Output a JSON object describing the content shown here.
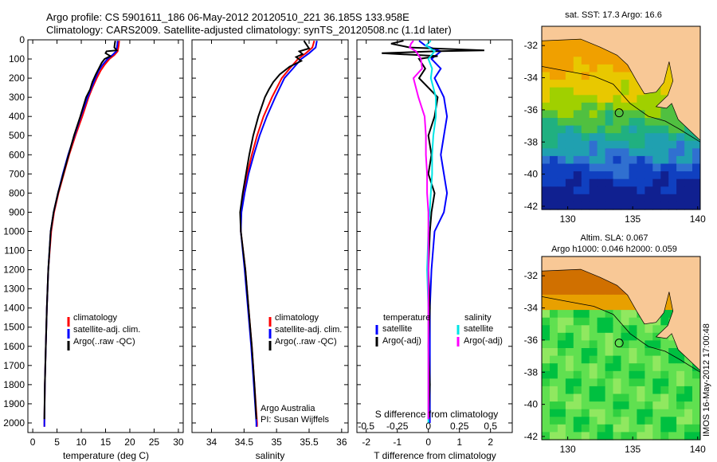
{
  "header": {
    "line1": "Argo profile: CS 5901611_186 06-May-2012 20120510_221 36.185S 133.958E",
    "line2": "Climatology: CARS2009. Satellite-adjusted climatology: synTS_20120508.nc (1.1d later)"
  },
  "map_top": {
    "title": "sat. SST: 17.3 Argo: 16.6",
    "x_ticks": [
      "130",
      "135",
      "140"
    ],
    "y_ticks": [
      "-32",
      "-34",
      "-36",
      "-38",
      "-40",
      "-42"
    ],
    "xlim": [
      128,
      140.2
    ],
    "ylim": [
      -42.2,
      -30.8
    ],
    "float_position": [
      133.958,
      -36.185
    ]
  },
  "map_bottom": {
    "title_line1": "Altim. SLA: 0.067",
    "title_line2": "Argo h1000: 0.046 h2000: 0.059",
    "x_ticks": [
      "130",
      "135",
      "140"
    ],
    "y_ticks": [
      "-32",
      "-34",
      "-36",
      "-38",
      "-40",
      "-42"
    ],
    "xlim": [
      128,
      140.2
    ],
    "ylim": [
      -42.2,
      -30.8
    ],
    "float_position": [
      133.958,
      -36.185
    ]
  },
  "side_stamp": "IMOS 16-May-2012 17:00:48",
  "credit": {
    "line1": "Argo Australia",
    "line2": "PI: Susan Wijffels"
  },
  "colors": {
    "climatology": "#ff0000",
    "satellite": "#0000ff",
    "argo": "#000000",
    "salinity_satellite": "#00e5e5",
    "salinity_argo": "#ff00ff",
    "land": "#f8c896"
  },
  "chart_data": [
    {
      "type": "line",
      "xlabel": "temperature (deg C)",
      "ylabel": "",
      "xlim": [
        -1,
        31
      ],
      "ylim": [
        2050,
        0
      ],
      "x_ticks": [
        "0",
        "5",
        "10",
        "15",
        "20",
        "25",
        "30"
      ],
      "y_ticks": [
        "0",
        "100",
        "200",
        "300",
        "400",
        "500",
        "600",
        "700",
        "800",
        "900",
        "1000",
        "1100",
        "1200",
        "1300",
        "1400",
        "1500",
        "1600",
        "1700",
        "1800",
        "1900",
        "2000"
      ],
      "legend": [
        "climatology",
        "satellite-adj. clim.",
        "Argo(..raw -QC)"
      ],
      "series": [
        {
          "name": "climatology",
          "color": "climatology",
          "depth": [
            5,
            30,
            60,
            80,
            100,
            130,
            160,
            200,
            250,
            300,
            400,
            500,
            600,
            700,
            800,
            900,
            1000,
            1200,
            1400,
            1600,
            1800,
            2000,
            2020
          ],
          "values": [
            17.8,
            17.7,
            17.5,
            16.8,
            15.8,
            14.8,
            14.0,
            13.2,
            12.3,
            11.5,
            10.2,
            8.8,
            7.5,
            6.4,
            5.3,
            4.4,
            3.8,
            3.2,
            2.9,
            2.7,
            2.5,
            2.4,
            2.4
          ]
        },
        {
          "name": "satellite-adj. clim.",
          "color": "satellite",
          "depth": [
            5,
            30,
            60,
            80,
            100,
            130,
            160,
            200,
            250,
            300,
            400,
            500,
            600,
            700,
            800,
            900,
            1000,
            1200,
            1400,
            1600,
            1800,
            2000,
            2020
          ],
          "values": [
            17.5,
            17.4,
            17.2,
            16.4,
            15.4,
            14.4,
            13.6,
            12.9,
            12.1,
            11.3,
            9.9,
            8.6,
            7.3,
            6.2,
            5.2,
            4.3,
            3.7,
            3.2,
            2.9,
            2.7,
            2.5,
            2.4,
            2.4
          ]
        },
        {
          "name": "Argo(..raw -QC)",
          "color": "argo",
          "depth": [
            5,
            20,
            40,
            55,
            60,
            70,
            85,
            100,
            120,
            150,
            180,
            220,
            260,
            300,
            400,
            500,
            600,
            700,
            800,
            900,
            1000,
            1200,
            1400,
            1600,
            1800,
            1980
          ],
          "values": [
            17.0,
            16.9,
            16.8,
            17.3,
            15.2,
            15.0,
            16.0,
            14.8,
            14.2,
            13.6,
            13.0,
            12.3,
            11.8,
            11.0,
            9.8,
            8.5,
            7.4,
            6.3,
            5.2,
            4.3,
            3.7,
            3.2,
            2.9,
            2.7,
            2.5,
            2.4
          ]
        }
      ]
    },
    {
      "type": "line",
      "xlabel": "salinity",
      "ylabel": "",
      "xlim": [
        33.7,
        36.1
      ],
      "ylim": [
        2050,
        0
      ],
      "x_ticks": [
        "34",
        "34.5",
        "35",
        "35.5",
        "36"
      ],
      "legend": [
        "climatology",
        "satellite-adj. clim.",
        "Argo(..raw -QC)"
      ],
      "series": [
        {
          "name": "climatology",
          "color": "climatology",
          "depth": [
            5,
            40,
            70,
            100,
            150,
            200,
            300,
            400,
            500,
            600,
            700,
            800,
            900,
            1000,
            1200,
            1400,
            1600,
            1800,
            2000,
            2020
          ],
          "values": [
            35.58,
            35.55,
            35.45,
            35.33,
            35.2,
            35.08,
            34.93,
            34.8,
            34.7,
            34.62,
            34.55,
            34.5,
            34.45,
            34.45,
            34.52,
            34.57,
            34.62,
            34.66,
            34.7,
            34.7
          ]
        },
        {
          "name": "satellite-adj. clim.",
          "color": "satellite",
          "depth": [
            5,
            40,
            70,
            100,
            150,
            200,
            300,
            400,
            500,
            600,
            700,
            800,
            900,
            1000,
            1200,
            1400,
            1600,
            1800,
            2000,
            2020
          ],
          "values": [
            35.62,
            35.6,
            35.5,
            35.38,
            35.25,
            35.12,
            34.98,
            34.85,
            34.74,
            34.65,
            34.57,
            34.51,
            34.46,
            34.45,
            34.51,
            34.56,
            34.61,
            34.65,
            34.69,
            34.69
          ]
        },
        {
          "name": "Argo(..raw -QC)",
          "color": "argo",
          "depth": [
            5,
            20,
            45,
            60,
            75,
            90,
            110,
            140,
            180,
            220,
            260,
            300,
            400,
            500,
            600,
            700,
            800,
            900,
            1000,
            1200,
            1400,
            1600,
            1800,
            1980
          ],
          "values": [
            35.42,
            35.45,
            35.5,
            35.35,
            35.4,
            35.3,
            35.38,
            35.2,
            35.05,
            34.95,
            34.88,
            34.82,
            34.72,
            34.64,
            34.58,
            34.53,
            34.48,
            34.44,
            34.45,
            34.52,
            34.57,
            34.62,
            34.66,
            34.69
          ]
        }
      ]
    },
    {
      "type": "line",
      "xlabel": "T difference from climatology",
      "xlabel2": "S difference from climatology",
      "xlim": [
        -2.3,
        2.7
      ],
      "ylim": [
        2050,
        0
      ],
      "x_ticks": [
        "-2",
        "-1",
        "0",
        "1",
        "2"
      ],
      "x2_ticks": [
        "-0.5",
        "-0.25",
        "0",
        "0.25",
        "0.5"
      ],
      "legend_headers": [
        "temperature",
        "salinity"
      ],
      "legend": [
        "satellite",
        "Argo(-adj)",
        "satellite",
        "Argo(-adj)"
      ],
      "series": [
        {
          "name": "satellite",
          "group": "temperature",
          "color": "satellite",
          "depth": [
            5,
            30,
            60,
            100,
            150,
            200,
            300,
            400,
            500,
            600,
            700,
            800,
            900,
            1000,
            1200,
            1400,
            1600,
            1800,
            2000
          ],
          "values": [
            -0.3,
            -0.1,
            0.4,
            0.1,
            0.4,
            0.2,
            0.5,
            0.6,
            0.5,
            0.4,
            0.5,
            0.6,
            0.5,
            0.2,
            0.1,
            0.05,
            0.05,
            0.05,
            0.05
          ]
        },
        {
          "name": "Argo(-adj)",
          "group": "temperature",
          "color": "argo",
          "depth": [
            5,
            20,
            40,
            55,
            60,
            70,
            85,
            100,
            150,
            200,
            300,
            400,
            500,
            600,
            700,
            800,
            900,
            1000,
            1200,
            1400,
            1600,
            1800,
            1980
          ],
          "values": [
            -0.8,
            -1.2,
            -0.6,
            1.8,
            0.2,
            -1.5,
            0.3,
            -0.3,
            -0.1,
            -0.3,
            0.3,
            0.2,
            0.0,
            0.1,
            0.0,
            0.2,
            0.1,
            0.05,
            0.0,
            0.05,
            0.0,
            0.05,
            0.0
          ]
        },
        {
          "name": "satellite",
          "group": "salinity",
          "color": "salinity_satellite",
          "depth": [
            5,
            30,
            60,
            100,
            150,
            200,
            300,
            400,
            500,
            600,
            700,
            800,
            900,
            1000,
            1200,
            1400,
            1600,
            1800,
            2000
          ],
          "values": [
            0.02,
            -0.02,
            0.05,
            0.0,
            0.03,
            0.02,
            0.06,
            0.06,
            0.04,
            0.03,
            0.03,
            0.02,
            0.01,
            0.0,
            -0.01,
            0.0,
            0.0,
            0.0,
            0.0
          ]
        },
        {
          "name": "Argo(-adj)",
          "group": "salinity",
          "color": "salinity_argo",
          "depth": [
            5,
            20,
            40,
            60,
            80,
            100,
            150,
            200,
            300,
            400,
            500,
            600,
            700,
            800,
            900,
            1000,
            1200,
            1400,
            1600,
            1800,
            1980
          ],
          "values": [
            -0.12,
            -0.14,
            -0.15,
            -0.1,
            -0.08,
            -0.06,
            -0.05,
            -0.12,
            -0.08,
            -0.03,
            -0.02,
            -0.02,
            -0.01,
            -0.01,
            0.0,
            0.0,
            0.0,
            0.0,
            0.0,
            0.0,
            0.0
          ]
        }
      ]
    }
  ]
}
